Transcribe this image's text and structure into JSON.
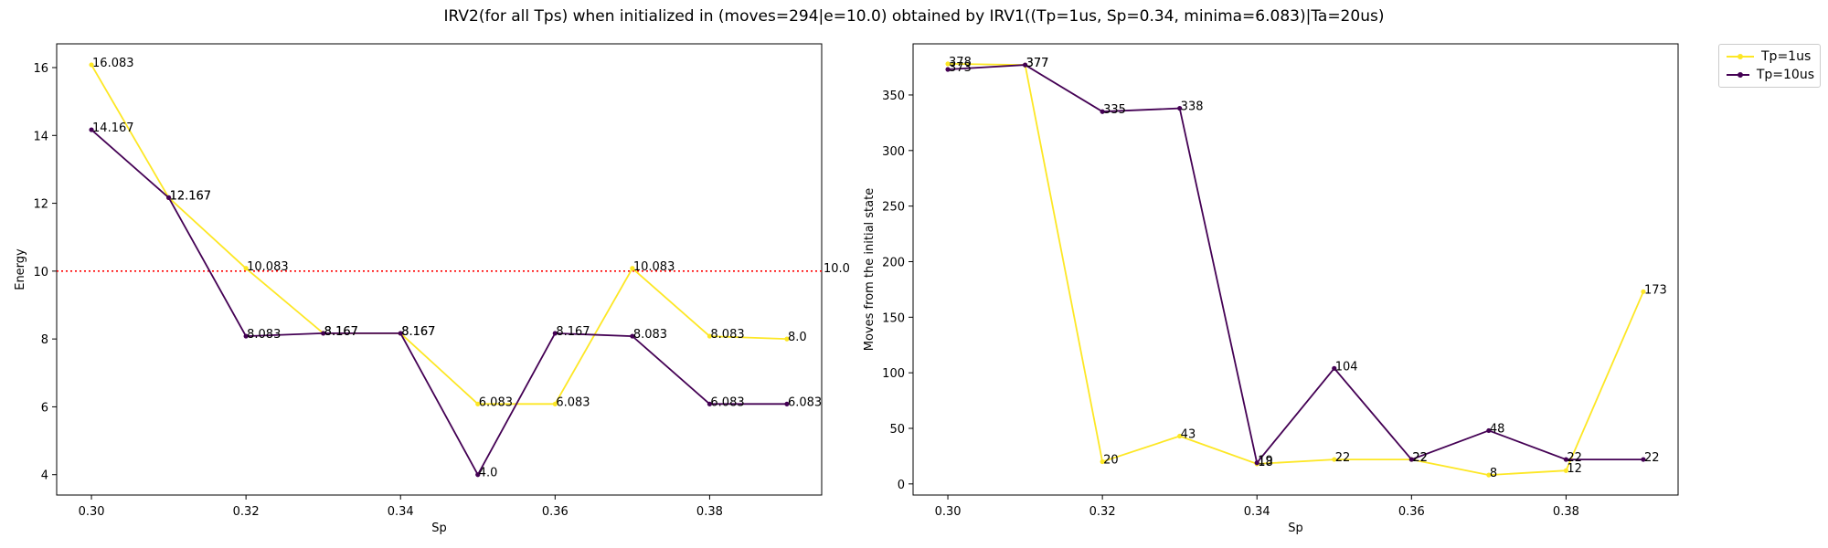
{
  "figure": {
    "title": "IRV2(for all Tps) when initialized in (moves=294|e=10.0) obtained by IRV1((Tp=1us, Sp=0.34, minima=6.083)|Ta=20us)"
  },
  "legend": {
    "entries": [
      {
        "label": "Tp=1us",
        "color": "#fde725"
      },
      {
        "label": "Tp=10us",
        "color": "#440154"
      }
    ],
    "placement": "outside upper right"
  },
  "chart_data": [
    {
      "type": "line",
      "title": "",
      "xlabel": "Sp",
      "ylabel": "Energy",
      "xlim": [
        0.2955,
        0.3945
      ],
      "ylim": [
        3.4,
        16.7
      ],
      "xticks": [
        "0.30",
        "0.32",
        "0.34",
        "0.36",
        "0.38"
      ],
      "yticks": [
        "4",
        "6",
        "8",
        "10",
        "12",
        "14",
        "16"
      ],
      "x": [
        0.3,
        0.31,
        0.32,
        0.33,
        0.34,
        0.35,
        0.36,
        0.37,
        0.38,
        0.39
      ],
      "series": [
        {
          "name": "Tp=1us",
          "color": "#fde725",
          "values": [
            16.083,
            12.167,
            10.083,
            8.167,
            8.167,
            6.083,
            6.083,
            10.083,
            8.083,
            8.0
          ],
          "labels": [
            "16.083",
            "12.167",
            "10.083",
            "8.167",
            "8.167",
            "6.083",
            "6.083",
            "10.083",
            "8.083",
            "8.0"
          ]
        },
        {
          "name": "Tp=10us",
          "color": "#440154",
          "values": [
            14.167,
            12.167,
            8.083,
            8.167,
            8.167,
            4.0,
            8.167,
            8.083,
            6.083,
            6.083
          ],
          "labels": [
            "14.167",
            "12.167",
            "8.083",
            "8.167",
            "8.167",
            "4.0",
            "8.167",
            "8.083",
            "6.083",
            "6.083"
          ]
        }
      ],
      "hline": {
        "value": 10.0,
        "label": "10.0",
        "color": "#ff0000",
        "style": "dotted"
      },
      "grid": false
    },
    {
      "type": "line",
      "title": "",
      "xlabel": "Sp",
      "ylabel": "Moves from the initial state",
      "xlim": [
        0.2955,
        0.3945
      ],
      "ylim": [
        -10,
        396
      ],
      "xticks": [
        "0.30",
        "0.32",
        "0.34",
        "0.36",
        "0.38"
      ],
      "yticks": [
        "0",
        "50",
        "100",
        "150",
        "200",
        "250",
        "300",
        "350"
      ],
      "x": [
        0.3,
        0.31,
        0.32,
        0.33,
        0.34,
        0.35,
        0.36,
        0.37,
        0.38,
        0.39
      ],
      "series": [
        {
          "name": "Tp=1us",
          "color": "#fde725",
          "values": [
            378,
            377,
            20,
            43,
            18,
            22,
            22,
            8,
            12,
            173
          ],
          "labels": [
            "378",
            "377",
            "20",
            "43",
            "18",
            "22",
            "22",
            "8",
            "12",
            "173"
          ]
        },
        {
          "name": "Tp=10us",
          "color": "#440154",
          "values": [
            373,
            377,
            335,
            338,
            19,
            104,
            22,
            48,
            22,
            22
          ],
          "labels": [
            "373",
            "377",
            "335",
            "338",
            "19",
            "104",
            "22",
            "48",
            "22",
            "22"
          ]
        }
      ],
      "grid": false
    }
  ]
}
